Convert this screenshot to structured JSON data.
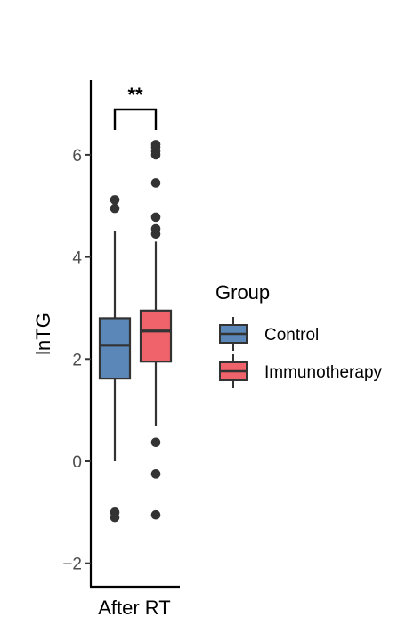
{
  "chart_data": {
    "type": "boxplot",
    "ylabel": "lnTG",
    "categories": [
      "After RT"
    ],
    "ylim": [
      -2.5,
      7.5
    ],
    "yticks": [
      -2,
      0,
      2,
      4,
      6
    ],
    "ytick_labels": [
      "−2",
      "0",
      "2",
      "4",
      "6"
    ],
    "grid": false,
    "legend_position": "right",
    "legend_title": "Group",
    "series": [
      {
        "name": "Control",
        "color": "#5b87b8",
        "whisker_low": 0.0,
        "q1": 1.62,
        "median": 2.27,
        "q3": 2.8,
        "whisker_high": 4.5,
        "outliers": [
          -1.0,
          -1.1,
          4.95,
          5.12
        ]
      },
      {
        "name": "Immunotherapy",
        "color": "#f0636a",
        "whisker_low": 0.68,
        "q1": 1.95,
        "median": 2.55,
        "q3": 2.95,
        "whisker_high": 4.3,
        "outliers": [
          -1.05,
          -0.25,
          0.37,
          4.45,
          4.55,
          4.78,
          5.45,
          6.0,
          6.07,
          6.15,
          6.2
        ]
      }
    ],
    "annotations": [
      {
        "type": "significance_bracket",
        "label": "**"
      }
    ]
  }
}
